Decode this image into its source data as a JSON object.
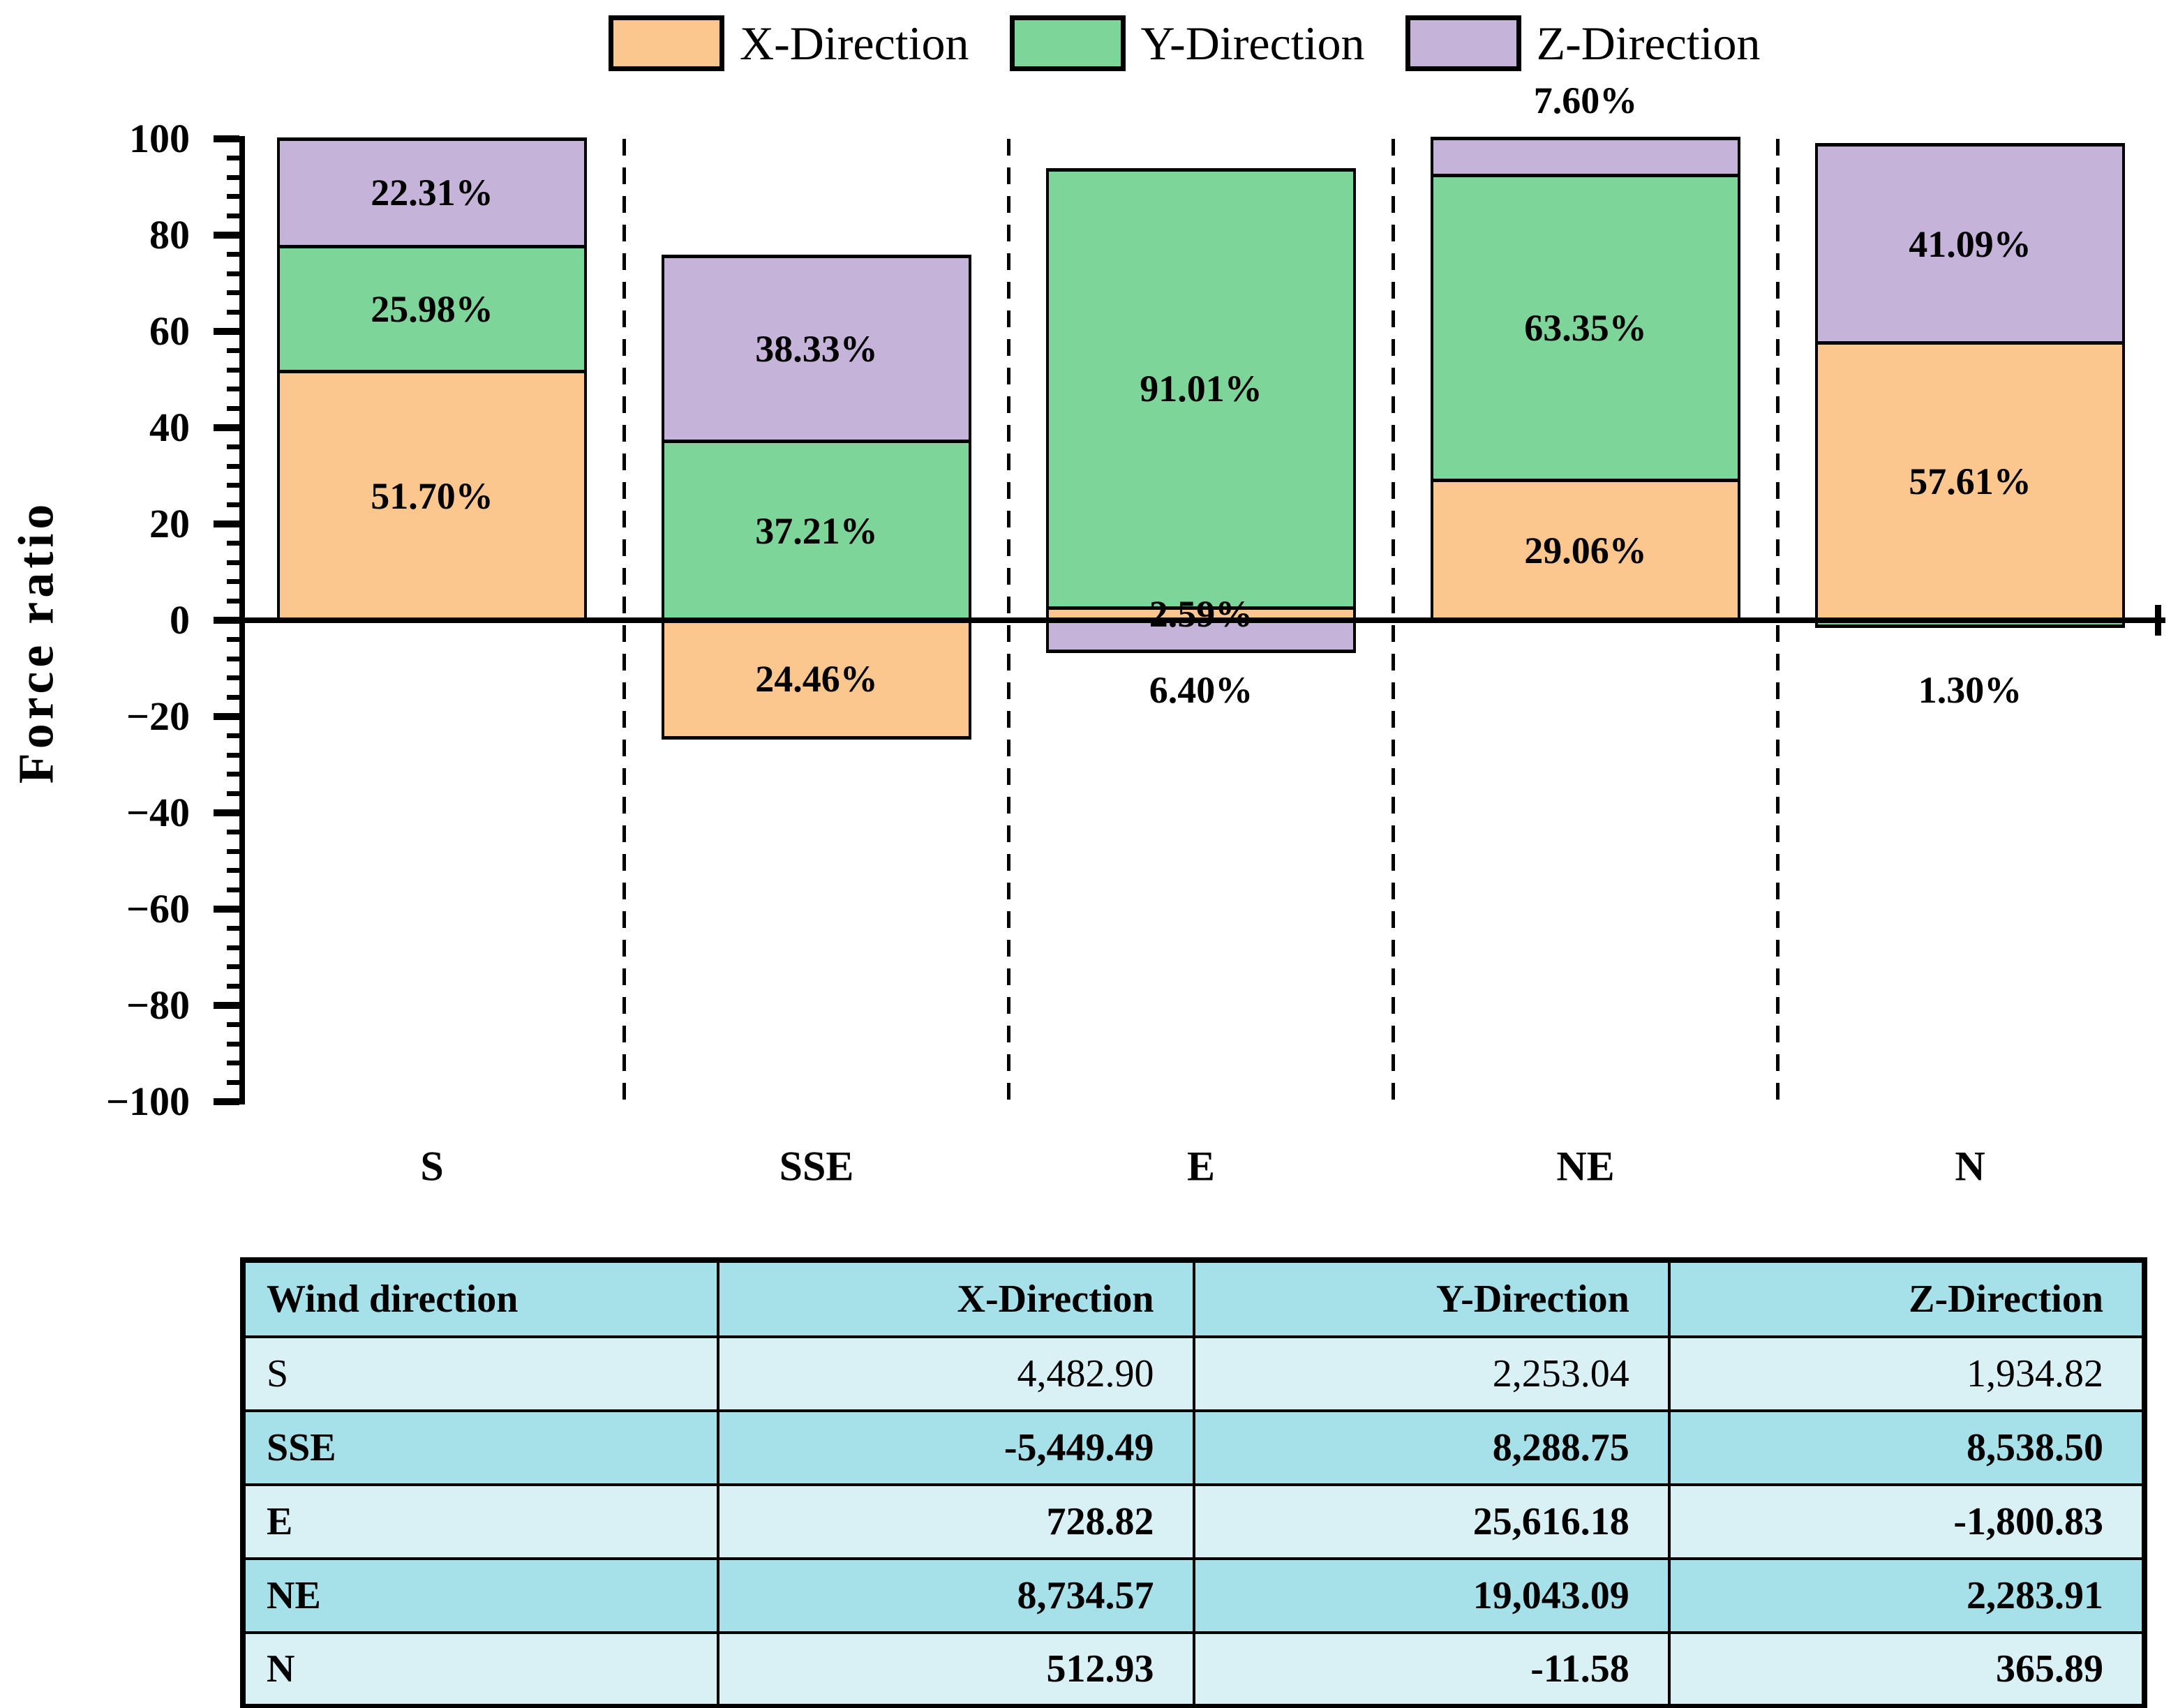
{
  "chart_data": {
    "type": "bar",
    "stacked": true,
    "title": "",
    "xlabel": "",
    "ylabel": "Force ratio",
    "ylim": [
      -100,
      100
    ],
    "ytick_step": 20,
    "ytick_minor_step": 4,
    "grid": false,
    "legend_position": "top",
    "yticks": [
      {
        "label": "100",
        "value": 100
      },
      {
        "label": "80",
        "value": 80
      },
      {
        "label": "60",
        "value": 60
      },
      {
        "label": "40",
        "value": 40
      },
      {
        "label": "20",
        "value": 20
      },
      {
        "label": "0",
        "value": 0
      },
      {
        "label": "−20",
        "value": -20
      },
      {
        "label": "−40",
        "value": -40
      },
      {
        "label": "−60",
        "value": -60
      },
      {
        "label": "−80",
        "value": -80
      },
      {
        "label": "−100",
        "value": -100
      }
    ],
    "categories": [
      "S",
      "SSE",
      "E",
      "NE",
      "N"
    ],
    "legend": [
      "X-Direction",
      "Y-Direction",
      "Z-Direction"
    ],
    "series_colors": {
      "X-Direction": "#FBC78E",
      "Y-Direction": "#7DD59A",
      "Z-Direction": "#C6B3D9"
    },
    "bars": [
      {
        "category": "S",
        "segments": [
          {
            "series": "X-Direction",
            "pct": 51.7,
            "label": "51.70%",
            "placement": "inside"
          },
          {
            "series": "Y-Direction",
            "pct": 25.98,
            "label": "25.98%",
            "placement": "inside"
          },
          {
            "series": "Z-Direction",
            "pct": 22.31,
            "label": "22.31%",
            "placement": "inside"
          }
        ]
      },
      {
        "category": "SSE",
        "segments": [
          {
            "series": "X-Direction",
            "pct": -24.46,
            "label": "24.46%",
            "placement": "inside"
          },
          {
            "series": "Y-Direction",
            "pct": 37.21,
            "label": "37.21%",
            "placement": "inside"
          },
          {
            "series": "Z-Direction",
            "pct": 38.33,
            "label": "38.33%",
            "placement": "inside"
          }
        ]
      },
      {
        "category": "E",
        "segments": [
          {
            "series": "X-Direction",
            "pct": 2.59,
            "label": "2.59%",
            "placement": "inside"
          },
          {
            "series": "Y-Direction",
            "pct": 91.01,
            "label": "91.01%",
            "placement": "inside"
          },
          {
            "series": "Z-Direction",
            "pct": -6.4,
            "label": "6.40%",
            "placement": "below"
          }
        ]
      },
      {
        "category": "NE",
        "segments": [
          {
            "series": "X-Direction",
            "pct": 29.06,
            "label": "29.06%",
            "placement": "inside"
          },
          {
            "series": "Y-Direction",
            "pct": 63.35,
            "label": "63.35%",
            "placement": "inside"
          },
          {
            "series": "Z-Direction",
            "pct": 7.6,
            "label": "7.60%",
            "placement": "above"
          }
        ]
      },
      {
        "category": "N",
        "segments": [
          {
            "series": "X-Direction",
            "pct": 57.61,
            "label": "57.61%",
            "placement": "inside"
          },
          {
            "series": "Y-Direction",
            "pct": -1.3,
            "label": "1.30%",
            "placement": "below"
          },
          {
            "series": "Z-Direction",
            "pct": 41.09,
            "label": "41.09%",
            "placement": "inside"
          }
        ]
      }
    ]
  },
  "table": {
    "columns": [
      "Wind direction",
      "X-Direction",
      "Y-Direction",
      "Z-Direction"
    ],
    "rows": [
      {
        "label": "S",
        "values": [
          "4,482.90",
          "2,253.04",
          "1,934.82"
        ]
      },
      {
        "label": "SSE",
        "values": [
          "-5,449.49",
          "8,288.75",
          "8,538.50"
        ]
      },
      {
        "label": "E",
        "values": [
          "728.82",
          "25,616.18",
          "-1,800.83"
        ]
      },
      {
        "label": "NE",
        "values": [
          "8,734.57",
          "19,043.09",
          "2,283.91"
        ]
      },
      {
        "label": "N",
        "values": [
          "512.93",
          "-11.58",
          "365.89"
        ]
      }
    ],
    "colors": {
      "header_bg": "#A6E1EA",
      "row_dark": "#A6E1EA",
      "row_light": "#D9F1F5",
      "border": "#000000"
    }
  }
}
